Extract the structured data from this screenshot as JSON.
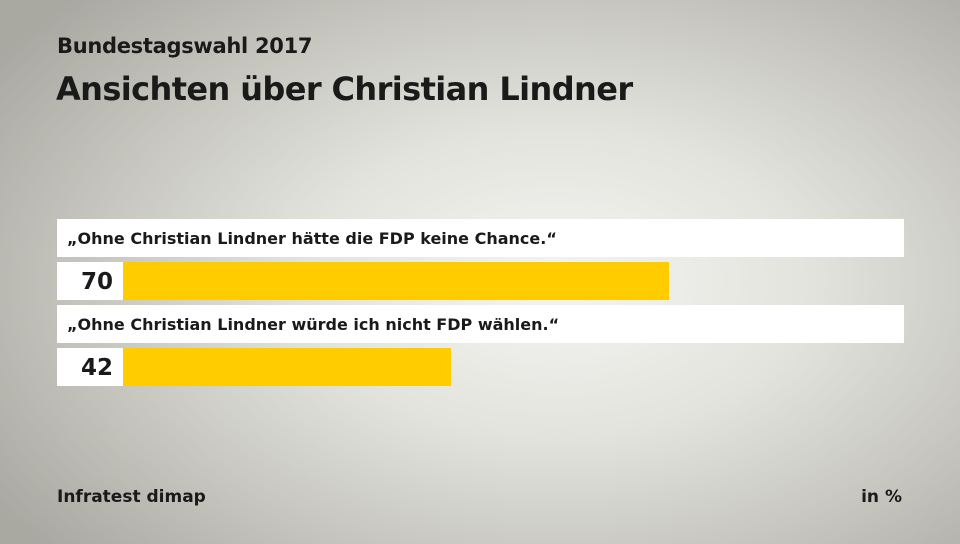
{
  "header": {
    "subtitle": "Bundestagswahl 2017",
    "title": "Ansichten über Christian Lindner"
  },
  "footer": {
    "source": "Infratest dimap",
    "unit": "in %"
  },
  "colors": {
    "bar": "#ffcc00",
    "label_bg": "#ffffff"
  },
  "chart_data": {
    "type": "bar",
    "orientation": "horizontal",
    "title": "Ansichten über Christian Lindner",
    "subtitle": "Bundestagswahl 2017",
    "categories": [
      "„Ohne Christian Lindner hätte die FDP keine Chance.“",
      "„Ohne Christian Lindner würde ich nicht FDP wählen.“"
    ],
    "values": [
      70,
      42
    ],
    "unit": "in %",
    "xlim": [
      0,
      100
    ],
    "grid": false
  }
}
